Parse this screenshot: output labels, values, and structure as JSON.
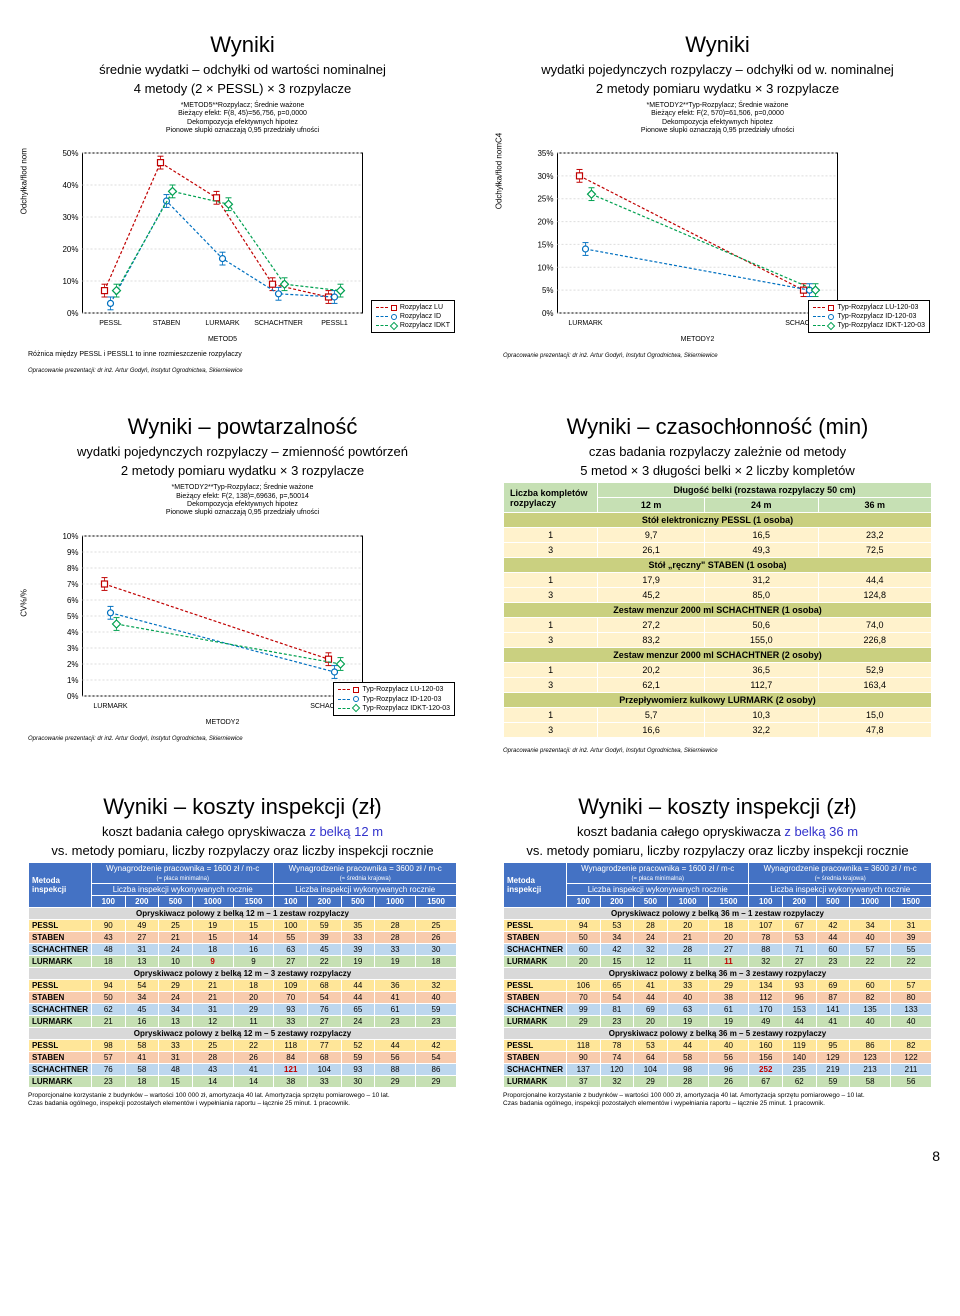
{
  "credit": "Opracowanie prezentacji: dr inż. Artur Godyń, Instytut Ogrodnictwa, Skierniewice",
  "page_number": "8",
  "panelA": {
    "title": "Wyniki",
    "sub1": "średnie wydatki – odchyłki od wartości nominalnej",
    "sub2": "4 metody (2 × PESSL) × 3 rozpylacze",
    "caption_lines": [
      "*METOD5**Rozpylacz; Średnie ważone",
      "Bieżący efekt: F(8, 45)=56,756, p=0,0000",
      "Dekompozycja efektywnych hipotez",
      "Pionowe słupki oznaczają 0,95 przedziały ufności"
    ],
    "ylabel": "Odchyłka/flod nom",
    "xticks": [
      "PESSL",
      "STABEN",
      "LURMARK",
      "SCHACHTNER",
      "PESSL1"
    ],
    "xaxis_label": "METOD5",
    "yticks": [
      "0%",
      "10%",
      "20%",
      "30%",
      "40%",
      "50%"
    ],
    "series": [
      {
        "label": "Rozpylacz LU",
        "color": "#c00000",
        "marker": "square",
        "values": [
          7,
          47,
          36,
          9,
          5
        ]
      },
      {
        "label": "Rozpylacz ID",
        "color": "#0070c0",
        "marker": "circle",
        "values": [
          3,
          35,
          17,
          6,
          5
        ]
      },
      {
        "label": "Rozpylacz IDKT",
        "color": "#00a050",
        "marker": "diamond",
        "values": [
          7,
          38,
          34,
          9,
          7
        ]
      }
    ],
    "footnote": "Różnica między PESSL i PESSL1 to inne rozmieszczenie rozpylaczy"
  },
  "panelB": {
    "title": "Wyniki",
    "sub1": "wydatki pojedynczych rozpylaczy – odchyłki od w. nominalnej",
    "sub2": "2 metody pomiaru wydatku × 3 rozpylacze",
    "caption_lines": [
      "*METODY2**Typ-Rozpylacz; Średnie ważone",
      "Bieżący efekt: F(2, 570)=61,506, p=0,0000",
      "Dekompozycja efektywnych hipotez",
      "Pionowe słupki oznaczają 0,95 przedziały ufności"
    ],
    "ylabel": "Odchyłka/flod nomC4",
    "xticks": [
      "LURMARK",
      "SCHACHTNER"
    ],
    "xaxis_label": "METODY2",
    "yticks": [
      "0%",
      "5%",
      "10%",
      "15%",
      "20%",
      "25%",
      "30%",
      "35%"
    ],
    "series": [
      {
        "label": "Typ-Rozpylacz LU-120-03",
        "color": "#c00000",
        "marker": "square",
        "values": [
          30,
          5
        ]
      },
      {
        "label": "Typ-Rozpylacz ID-120-03",
        "color": "#0070c0",
        "marker": "circle",
        "values": [
          14,
          5
        ]
      },
      {
        "label": "Typ-Rozpylacz IDKT-120-03",
        "color": "#00a050",
        "marker": "diamond",
        "values": [
          26,
          5
        ]
      }
    ]
  },
  "panelC": {
    "title": "Wyniki – powtarzalność",
    "sub1": "wydatki pojedynczych rozpylaczy – zmienność powtórzeń",
    "sub2": "2 metody pomiaru wydatku × 3 rozpylacze",
    "caption_lines": [
      "*METODY2**Typ-Rozpylacz; Średnie ważone",
      "Bieżący efekt: F(2, 138)=,69636, p=,50014",
      "Dekompozycja efektywnych hipotez",
      "Pionowe słupki oznaczają 0,95 przedziały ufności"
    ],
    "ylabel": "CV%/%",
    "xticks": [
      "LURMARK",
      "SCHACHTNER"
    ],
    "xaxis_label": "METODY2",
    "yticks": [
      "0%",
      "1%",
      "2%",
      "3%",
      "4%",
      "5%",
      "6%",
      "7%",
      "8%",
      "9%",
      "10%"
    ],
    "series": [
      {
        "label": "Typ-Rozpylacz LU-120-03",
        "color": "#c00000",
        "marker": "square",
        "values": [
          7.0,
          2.3
        ]
      },
      {
        "label": "Typ-Rozpylacz ID-120-03",
        "color": "#0070c0",
        "marker": "circle",
        "values": [
          5.2,
          1.5
        ]
      },
      {
        "label": "Typ-Rozpylacz IDKT-120-03",
        "color": "#00a050",
        "marker": "diamond",
        "values": [
          4.5,
          2.0
        ]
      }
    ]
  },
  "panelD": {
    "title": "Wyniki – czasochłonność (min)",
    "sub1": "czas badania rozpylaczy zależnie od metody",
    "sub2": "5 metod × 3 długości belki × 2 liczby kompletów",
    "header_left": "Liczba kompletów rozpylaczy",
    "header_right": "Długość belki (rozstawa rozpylaczy 50 cm)",
    "col_labels": [
      "12 m",
      "24 m",
      "36 m"
    ],
    "header_bg": "#c6e0b4",
    "section_bg": "#cad080",
    "body_bg": "#fff2cc",
    "sections": [
      {
        "name": "Stół elektroniczny PESSL (1 osoba)",
        "rows": [
          {
            "k": "1",
            "v": [
              "9,7",
              "16,5",
              "23,2"
            ]
          },
          {
            "k": "3",
            "v": [
              "26,1",
              "49,3",
              "72,5"
            ]
          }
        ]
      },
      {
        "name": "Stół „ręczny\" STABEN (1 osoba)",
        "rows": [
          {
            "k": "1",
            "v": [
              "17,9",
              "31,2",
              "44,4"
            ]
          },
          {
            "k": "3",
            "v": [
              "45,2",
              "85,0",
              "124,8"
            ]
          }
        ]
      },
      {
        "name": "Zestaw menzur 2000 ml SCHACHTNER (1 osoba)",
        "rows": [
          {
            "k": "1",
            "v": [
              "27,2",
              "50,6",
              "74,0"
            ]
          },
          {
            "k": "3",
            "v": [
              "83,2",
              "155,0",
              "226,8"
            ]
          }
        ]
      },
      {
        "name": "Zestaw menzur 2000 ml SCHACHTNER (2 osoby)",
        "rows": [
          {
            "k": "1",
            "v": [
              "20,2",
              "36,5",
              "52,9"
            ]
          },
          {
            "k": "3",
            "v": [
              "62,1",
              "112,7",
              "163,4"
            ]
          }
        ]
      },
      {
        "name": "Przepływomierz kulkowy LURMARK (2 osoby)",
        "rows": [
          {
            "k": "1",
            "v": [
              "5,7",
              "10,3",
              "15,0"
            ]
          },
          {
            "k": "3",
            "v": [
              "16,6",
              "32,2",
              "47,8"
            ]
          }
        ]
      }
    ]
  },
  "panelE": {
    "title": "Wyniki – koszty inspekcji (zł)",
    "sub1_a": "koszt badania całego opryskiwacza ",
    "sub1_b": "z belką 12 m",
    "sub2": "vs. metody pomiaru, liczby rozpylaczy oraz liczby inspekcji rocznie",
    "hdr_left": "Metoda inspekcji",
    "wage1": "Wynagrodzenie pracownika = 1600 zł / m-c",
    "wage1_note": "(= płaca minimalna)",
    "wage2": "Wynagrodzenie pracownika = 3600 zł / m-c",
    "wage2_note": "(≈ średnia krajowa)",
    "insp_hdr": "Liczba inspekcji wykonywanych rocznie",
    "cols": [
      "100",
      "200",
      "500",
      "1000",
      "1500",
      "100",
      "200",
      "500",
      "1000",
      "1500"
    ],
    "header_bg": "#4472c4",
    "header_fg": "#ffffff",
    "row_colors": {
      "PESSL": "#ffe699",
      "STABEN": "#f8cbad",
      "SCHACHTNER": "#bdd7ee",
      "LURMARK": "#c6e0b4"
    },
    "section_bg": "#d9d9d9",
    "sections": [
      {
        "name": "Opryskiwacz polowy z belką 12 m – 1 zestaw rozpylaczy",
        "rows": [
          {
            "m": "PESSL",
            "v": [
              "90",
              "49",
              "25",
              "19",
              "15",
              "100",
              "59",
              "35",
              "28",
              "25"
            ]
          },
          {
            "m": "STABEN",
            "v": [
              "43",
              "27",
              "21",
              "15",
              "14",
              "55",
              "39",
              "33",
              "28",
              "26"
            ]
          },
          {
            "m": "SCHACHTNER",
            "v": [
              "48",
              "31",
              "24",
              "18",
              "16",
              "63",
              "45",
              "39",
              "33",
              "30"
            ]
          },
          {
            "m": "LURMARK",
            "v": [
              "18",
              "13",
              "10",
              "9",
              "9",
              "27",
              "22",
              "19",
              "19",
              "18"
            ],
            "red_idx": [
              3
            ]
          }
        ]
      },
      {
        "name": "Opryskiwacz polowy z belką 12 m – 3 zestawy rozpylaczy",
        "rows": [
          {
            "m": "PESSL",
            "v": [
              "94",
              "54",
              "29",
              "21",
              "18",
              "109",
              "68",
              "44",
              "36",
              "32"
            ]
          },
          {
            "m": "STABEN",
            "v": [
              "50",
              "34",
              "24",
              "21",
              "20",
              "70",
              "54",
              "44",
              "41",
              "40"
            ]
          },
          {
            "m": "SCHACHTNER",
            "v": [
              "62",
              "45",
              "34",
              "31",
              "29",
              "93",
              "76",
              "65",
              "61",
              "59"
            ]
          },
          {
            "m": "LURMARK",
            "v": [
              "21",
              "16",
              "13",
              "12",
              "11",
              "33",
              "27",
              "24",
              "23",
              "23"
            ]
          }
        ]
      },
      {
        "name": "Opryskiwacz polowy z belką 12 m – 5 zestawy rozpylaczy",
        "rows": [
          {
            "m": "PESSL",
            "v": [
              "98",
              "58",
              "33",
              "25",
              "22",
              "118",
              "77",
              "52",
              "44",
              "42"
            ]
          },
          {
            "m": "STABEN",
            "v": [
              "57",
              "41",
              "31",
              "28",
              "26",
              "84",
              "68",
              "59",
              "56",
              "54"
            ]
          },
          {
            "m": "SCHACHTNER",
            "v": [
              "76",
              "58",
              "48",
              "43",
              "41",
              "121",
              "104",
              "93",
              "88",
              "86"
            ],
            "red_idx": [
              5
            ]
          },
          {
            "m": "LURMARK",
            "v": [
              "23",
              "18",
              "15",
              "14",
              "14",
              "38",
              "33",
              "30",
              "29",
              "29"
            ]
          }
        ]
      }
    ],
    "footnote": "Proporcjonalne korzystanie z budynków – wartości 100 000 zł, amortyzacja 40 lat. Amortyzacja sprzętu pomiarowego – 10 lat.\nCzas badania ogólnego, inspekcji pozostałych elementów i wypełniania raportu – łącznie 25 minut. 1 pracownik."
  },
  "panelF": {
    "title": "Wyniki – koszty inspekcji (zł)",
    "sub1_a": "koszt badania całego opryskiwacza ",
    "sub1_b": "z belką 36 m",
    "sub2": "vs. metody pomiaru, liczby rozpylaczy oraz liczby inspekcji rocznie",
    "hdr_left": "Metoda inspekcji",
    "wage1": "Wynagrodzenie pracownika = 1600 zł / m-c",
    "wage1_note": "(= płaca minimalna)",
    "wage2": "Wynagrodzenie pracownika = 3600 zł / m-c",
    "wage2_note": "(≈ średnia krajowa)",
    "insp_hdr": "Liczba inspekcji wykonywanych rocznie",
    "cols": [
      "100",
      "200",
      "500",
      "1000",
      "1500",
      "100",
      "200",
      "500",
      "1000",
      "1500"
    ],
    "header_bg": "#4472c4",
    "header_fg": "#ffffff",
    "row_colors": {
      "PESSL": "#ffe699",
      "STABEN": "#f8cbad",
      "SCHACHTNER": "#bdd7ee",
      "LURMARK": "#c6e0b4"
    },
    "section_bg": "#d9d9d9",
    "sections": [
      {
        "name": "Opryskiwacz polowy z belką 36 m – 1 zestaw rozpylaczy",
        "rows": [
          {
            "m": "PESSL",
            "v": [
              "94",
              "53",
              "28",
              "20",
              "18",
              "107",
              "67",
              "42",
              "34",
              "31"
            ]
          },
          {
            "m": "STABEN",
            "v": [
              "50",
              "34",
              "24",
              "21",
              "20",
              "78",
              "53",
              "44",
              "40",
              "39"
            ]
          },
          {
            "m": "SCHACHTNER",
            "v": [
              "60",
              "42",
              "32",
              "28",
              "27",
              "88",
              "71",
              "60",
              "57",
              "55"
            ]
          },
          {
            "m": "LURMARK",
            "v": [
              "20",
              "15",
              "12",
              "11",
              "11",
              "32",
              "27",
              "23",
              "22",
              "22"
            ],
            "red_idx": [
              4
            ]
          }
        ]
      },
      {
        "name": "Opryskiwacz polowy z belką 36 m – 3 zestawy rozpylaczy",
        "rows": [
          {
            "m": "PESSL",
            "v": [
              "106",
              "65",
              "41",
              "33",
              "29",
              "134",
              "93",
              "69",
              "60",
              "57"
            ]
          },
          {
            "m": "STABEN",
            "v": [
              "70",
              "54",
              "44",
              "40",
              "38",
              "112",
              "96",
              "87",
              "82",
              "80"
            ]
          },
          {
            "m": "SCHACHTNER",
            "v": [
              "99",
              "81",
              "69",
              "63",
              "61",
              "170",
              "153",
              "141",
              "135",
              "133"
            ]
          },
          {
            "m": "LURMARK",
            "v": [
              "29",
              "23",
              "20",
              "19",
              "19",
              "49",
              "44",
              "41",
              "40",
              "40"
            ]
          }
        ]
      },
      {
        "name": "Opryskiwacz polowy z belką 36 m – 5 zestawy rozpylaczy",
        "rows": [
          {
            "m": "PESSL",
            "v": [
              "118",
              "78",
              "53",
              "44",
              "40",
              "160",
              "119",
              "95",
              "86",
              "82"
            ]
          },
          {
            "m": "STABEN",
            "v": [
              "90",
              "74",
              "64",
              "58",
              "56",
              "156",
              "140",
              "129",
              "123",
              "122"
            ]
          },
          {
            "m": "SCHACHTNER",
            "v": [
              "137",
              "120",
              "104",
              "98",
              "96",
              "252",
              "235",
              "219",
              "213",
              "211"
            ],
            "red_idx": [
              5
            ]
          },
          {
            "m": "LURMARK",
            "v": [
              "37",
              "32",
              "29",
              "28",
              "26",
              "67",
              "62",
              "59",
              "58",
              "56"
            ]
          }
        ]
      }
    ],
    "footnote": "Proporcjonalne korzystanie z budynków – wartości 100 000 zł, amortyzacja 40 lat. Amortyzacja sprzętu pomiarowego – 10 lat.\nCzas badania ogólnego, inspekcji pozostałych elementów i wypełniania raportu – łącznie 25 minut. 1 pracownik."
  }
}
